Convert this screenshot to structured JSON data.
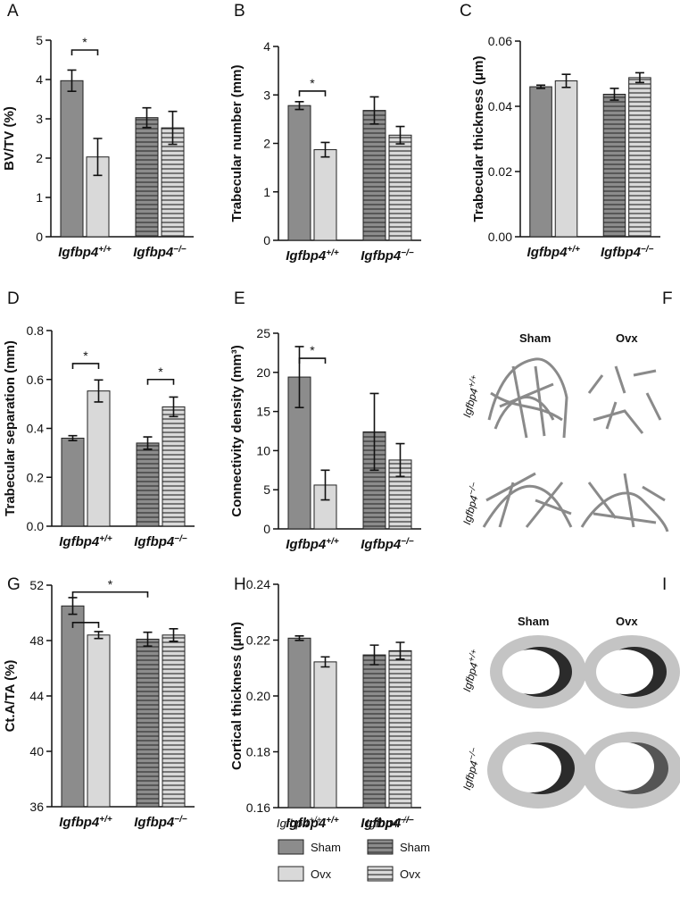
{
  "chart_data": [
    {
      "type": "bar",
      "panel": "A",
      "ylabel": "BV/TV (%)",
      "categories": [
        "Igfbp4",
        "Igfbp4"
      ],
      "category_superscripts": [
        "+/+",
        "−/−"
      ],
      "hatched": [
        false,
        true
      ],
      "series": [
        {
          "name": "Sham",
          "color": "#8c8c8c",
          "values": [
            3.97,
            3.03
          ],
          "errors": [
            0.27,
            0.25
          ]
        },
        {
          "name": "Ovx",
          "color": "#d9d9d9",
          "values": [
            2.03,
            2.77
          ],
          "errors": [
            0.47,
            0.42
          ]
        }
      ],
      "ylim": [
        0,
        5
      ],
      "yticks": [
        0,
        1,
        2,
        3,
        4,
        5
      ],
      "brackets": [
        {
          "label": "*",
          "y": 4.75,
          "bars": [
            [
              0,
              0
            ],
            [
              1,
              0
            ]
          ]
        }
      ]
    },
    {
      "type": "bar",
      "panel": "B",
      "ylabel": "Trabecular number (mm)",
      "categories": [
        "Igfbp4",
        "Igfbp4"
      ],
      "category_superscripts": [
        "+/+",
        "−/−"
      ],
      "hatched": [
        false,
        true
      ],
      "series": [
        {
          "name": "Sham",
          "color": "#8c8c8c",
          "values": [
            2.78,
            2.68
          ],
          "errors": [
            0.08,
            0.28
          ]
        },
        {
          "name": "Ovx",
          "color": "#d9d9d9",
          "values": [
            1.87,
            2.17
          ],
          "errors": [
            0.15,
            0.18
          ]
        }
      ],
      "ylim": [
        0,
        4
      ],
      "yticks": [
        0,
        1,
        2,
        3,
        4
      ],
      "brackets": [
        {
          "label": "*",
          "y": 3.08,
          "bars": [
            [
              0,
              0
            ],
            [
              1,
              0
            ]
          ]
        }
      ]
    },
    {
      "type": "bar",
      "panel": "C",
      "ylabel": "Trabecular thickness (μm)",
      "categories": [
        "Igfbp4",
        "Igfbp4"
      ],
      "category_superscripts": [
        "+/+",
        "−/−"
      ],
      "hatched": [
        false,
        true
      ],
      "series": [
        {
          "name": "Sham",
          "color": "#8c8c8c",
          "values": [
            0.046,
            0.0437
          ],
          "errors": [
            0.0005,
            0.0018
          ]
        },
        {
          "name": "Ovx",
          "color": "#d9d9d9",
          "values": [
            0.0478,
            0.0488
          ],
          "errors": [
            0.002,
            0.0015
          ]
        }
      ],
      "ylim": [
        0,
        0.06
      ],
      "yticks": [
        {
          "value": 0,
          "label": "0.00"
        },
        {
          "value": 0.02,
          "label": "0.02"
        },
        {
          "value": 0.04,
          "label": "0.04"
        },
        {
          "value": 0.06,
          "label": "0.06"
        }
      ],
      "brackets": []
    },
    {
      "type": "bar",
      "panel": "D",
      "ylabel": "Trabecular separation (mm)",
      "categories": [
        "Igfbp4",
        "Igfbp4"
      ],
      "category_superscripts": [
        "+/+",
        "−/−"
      ],
      "hatched": [
        false,
        true
      ],
      "series": [
        {
          "name": "Sham",
          "color": "#8c8c8c",
          "values": [
            0.36,
            0.34
          ],
          "errors": [
            0.01,
            0.025
          ]
        },
        {
          "name": "Ovx",
          "color": "#d9d9d9",
          "values": [
            0.553,
            0.488
          ],
          "errors": [
            0.045,
            0.04
          ]
        }
      ],
      "ylim": [
        0,
        0.8
      ],
      "yticks": [
        {
          "value": 0,
          "label": "0.0"
        },
        0.2,
        0.4,
        0.6,
        0.8
      ],
      "brackets": [
        {
          "label": "*",
          "y": 0.665,
          "bars": [
            [
              0,
              0
            ],
            [
              1,
              0
            ]
          ]
        },
        {
          "label": "*",
          "y": 0.6,
          "bars": [
            [
              0,
              1
            ],
            [
              1,
              1
            ]
          ]
        }
      ]
    },
    {
      "type": "bar",
      "panel": "E",
      "ylabel": "Connectivity density (mm³)",
      "categories": [
        "Igfbp4",
        "Igfbp4"
      ],
      "category_superscripts": [
        "+/+",
        "−/−"
      ],
      "hatched": [
        false,
        true
      ],
      "series": [
        {
          "name": "Sham",
          "color": "#8c8c8c",
          "values": [
            19.4,
            12.4
          ],
          "errors": [
            3.9,
            4.9
          ]
        },
        {
          "name": "Ovx",
          "color": "#d9d9d9",
          "values": [
            5.6,
            8.8
          ],
          "errors": [
            1.9,
            2.1
          ]
        }
      ],
      "ylim": [
        0,
        25
      ],
      "yticks": [
        0,
        5,
        10,
        15,
        20,
        25
      ],
      "brackets": [
        {
          "label": "*",
          "y": 21.8,
          "bars": [
            [
              0,
              0
            ],
            [
              1,
              0
            ]
          ]
        }
      ]
    },
    {
      "type": "bar",
      "panel": "G",
      "ylabel": "Ct.A/TA (%)",
      "categories": [
        "Igfbp4",
        "Igfbp4"
      ],
      "category_superscripts": [
        "+/+",
        "−/−"
      ],
      "hatched": [
        false,
        true
      ],
      "series": [
        {
          "name": "Sham",
          "color": "#8c8c8c",
          "values": [
            50.5,
            48.1
          ],
          "errors": [
            0.6,
            0.5
          ]
        },
        {
          "name": "Ovx",
          "color": "#d9d9d9",
          "values": [
            48.4,
            48.4
          ],
          "errors": [
            0.25,
            0.45
          ]
        }
      ],
      "ylim": [
        36,
        52
      ],
      "yticks": [
        36,
        40,
        44,
        48,
        52
      ],
      "brackets": [
        {
          "y": 49.3,
          "bars": [
            [
              0,
              0
            ],
            [
              1,
              0
            ]
          ]
        },
        {
          "label": "*",
          "y": 51.5,
          "bars": [
            [
              0,
              0
            ],
            [
              0,
              1
            ]
          ]
        }
      ]
    },
    {
      "type": "bar",
      "panel": "H",
      "ylabel": "Cortical thickness (μm)",
      "categories": [
        "Igfbp4",
        "Igfbp4"
      ],
      "category_superscripts": [
        "+/+",
        "−/−"
      ],
      "hatched": [
        false,
        true
      ],
      "series": [
        {
          "name": "Sham",
          "color": "#8c8c8c",
          "values": [
            0.2207,
            0.2147
          ],
          "errors": [
            0.0008,
            0.0035
          ]
        },
        {
          "name": "Ovx",
          "color": "#d9d9d9",
          "values": [
            0.2122,
            0.2162
          ],
          "errors": [
            0.0018,
            0.003
          ]
        }
      ],
      "ylim": [
        0.16,
        0.24
      ],
      "yticks": [
        0.16,
        0.18,
        {
          "value": 0.2,
          "label": "0.20"
        },
        0.22,
        0.24
      ],
      "brackets": []
    }
  ],
  "figures": [
    {
      "panel": "F",
      "columns": [
        "Sham",
        "Ovx"
      ],
      "rows": [
        "Igfbp4",
        "Igfbp4"
      ],
      "row_superscripts": [
        "+/+",
        "−/−"
      ]
    },
    {
      "panel": "I",
      "columns": [
        "Sham",
        "Ovx"
      ],
      "rows": [
        "Igfbp4",
        "Igfbp4"
      ],
      "row_superscripts": [
        "+/+",
        "−/−"
      ]
    }
  ],
  "legend": {
    "groups": [
      "Igfbp4",
      "Igfbp4"
    ],
    "group_superscripts": [
      "+/+",
      "−/−"
    ],
    "entries": [
      [
        "Sham",
        "Ovx"
      ],
      [
        "Sham",
        "Ovx"
      ]
    ]
  }
}
